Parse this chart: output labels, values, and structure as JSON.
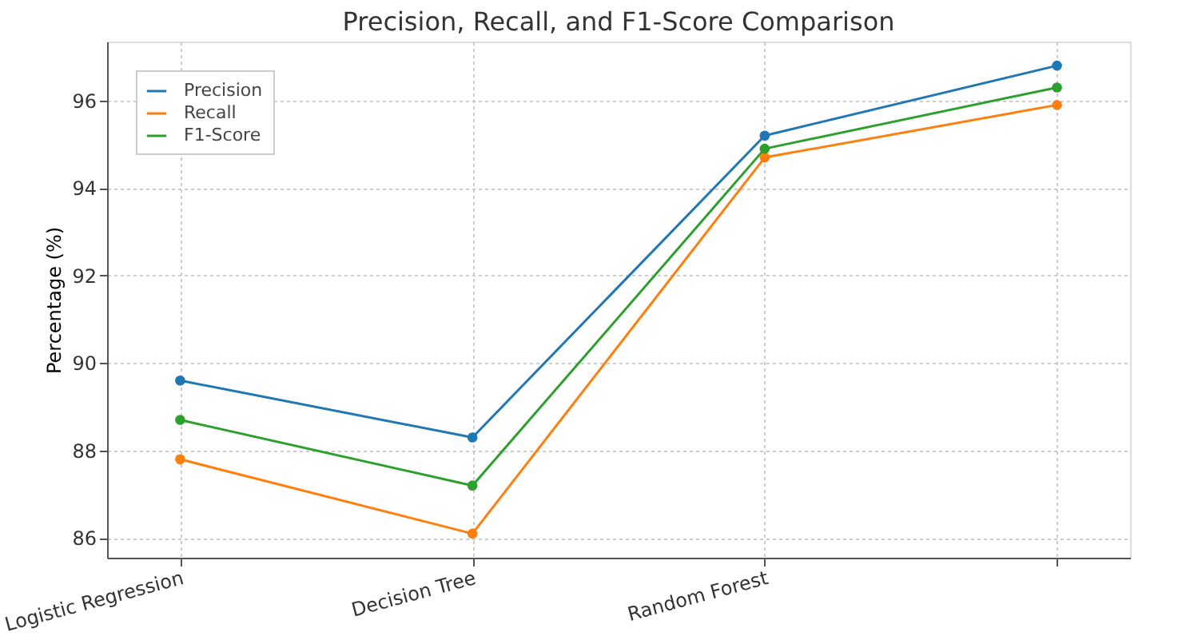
{
  "chart_data": {
    "type": "line",
    "title": "Precision, Recall, and F1-Score Comparison",
    "ylabel": "Percentage (%)",
    "categories": [
      "Logistic Regression",
      "Decision Tree",
      "Random Forest",
      null
    ],
    "series": [
      {
        "name": "Precision",
        "color": "#1f77b4",
        "values": [
          89.6,
          88.3,
          95.2,
          96.8
        ]
      },
      {
        "name": "Recall",
        "color": "#ff7f0e",
        "values": [
          87.8,
          86.1,
          94.7,
          95.9
        ]
      },
      {
        "name": "F1-Score",
        "color": "#2ca02c",
        "values": [
          88.7,
          87.2,
          94.9,
          96.3
        ]
      }
    ],
    "ylim": [
      85.55,
      97.35
    ],
    "yticks": [
      86,
      88,
      90,
      92,
      94,
      96
    ],
    "grid": true,
    "legend": "top left",
    "marker": "circle",
    "line_style": "solid"
  }
}
